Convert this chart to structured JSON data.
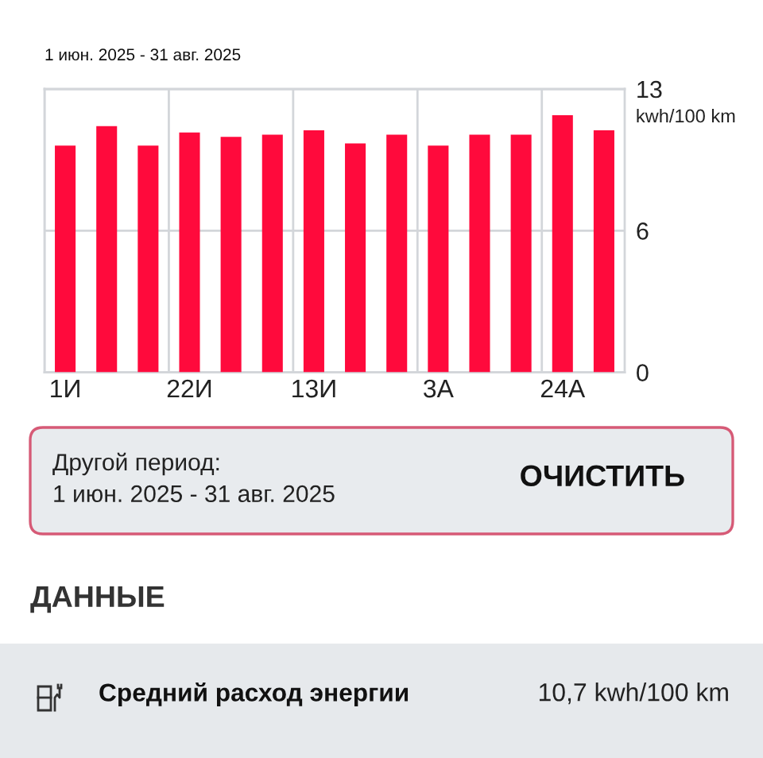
{
  "chart_data": [
    {
      "type": "bar",
      "title": "1 июн. 2025 - 31 авг. 2025",
      "ylabel": "kwh/100 km",
      "categories": [
        "1И",
        null,
        null,
        "22И",
        null,
        null,
        "13И",
        null,
        null,
        "3А",
        null,
        null,
        "24А",
        null
      ],
      "values": [
        10.4,
        11.3,
        10.4,
        11.0,
        10.8,
        10.9,
        11.1,
        10.5,
        10.9,
        10.4,
        10.9,
        10.9,
        11.8,
        11.1
      ],
      "color": "#ff0a3c",
      "ylim": [
        0,
        13
      ],
      "yticks": [
        0,
        {
          "value": 6.5,
          "label": "6"
        },
        13
      ],
      "grid": true
    },
    {
      "type": "other",
      "annotations": [
        "Другой период:",
        "1 июн. 2025 - 31 авг. 2025",
        "ОЧИСТИТЬ",
        "ДАННЫЕ",
        "Средний расход энергии",
        "10,7 kwh/100 km"
      ]
    }
  ]
}
